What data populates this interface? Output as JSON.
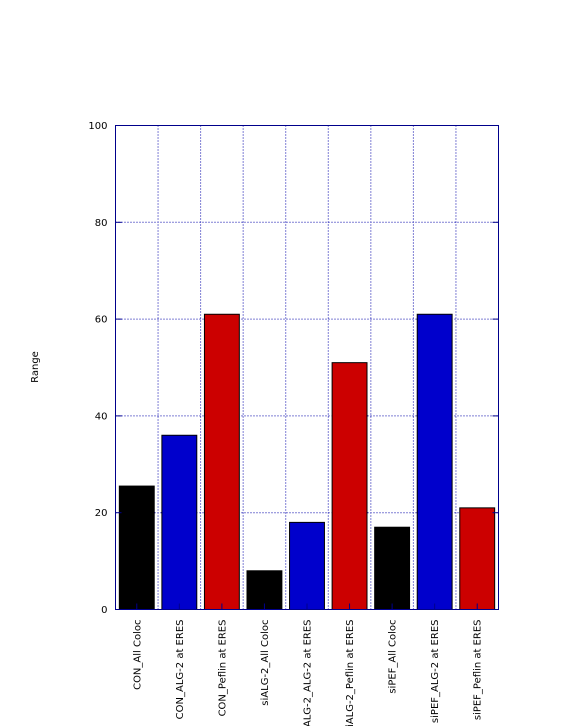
{
  "chart_data": {
    "type": "bar",
    "title": "",
    "xlabel": "",
    "ylabel": "Range",
    "ylim": [
      0,
      100
    ],
    "yticks": [
      0,
      20,
      40,
      60,
      80,
      100
    ],
    "grid": true,
    "categories": [
      "CON_All Coloc",
      "CON_ALG-2 at ERES",
      "CON_Peflin at ERES",
      "siALG-2_All Coloc",
      "siALG-2_ALG-2 at ERES",
      "siALG-2_Peflin at ERES",
      "siPEF_All Coloc",
      "siPEF_ALG-2 at ERES",
      "siPEF_Peflin at ERES"
    ],
    "values": [
      25.5,
      36,
      61,
      8,
      18,
      51,
      17,
      61,
      21
    ],
    "bar_colors": [
      "#000000",
      "#0000cc",
      "#cc0000",
      "#000000",
      "#0000cc",
      "#cc0000",
      "#000000",
      "#0000cc",
      "#cc0000"
    ],
    "colors": {
      "frame": "#00008b",
      "grid": "#0000aa",
      "edge": "#000000"
    }
  }
}
